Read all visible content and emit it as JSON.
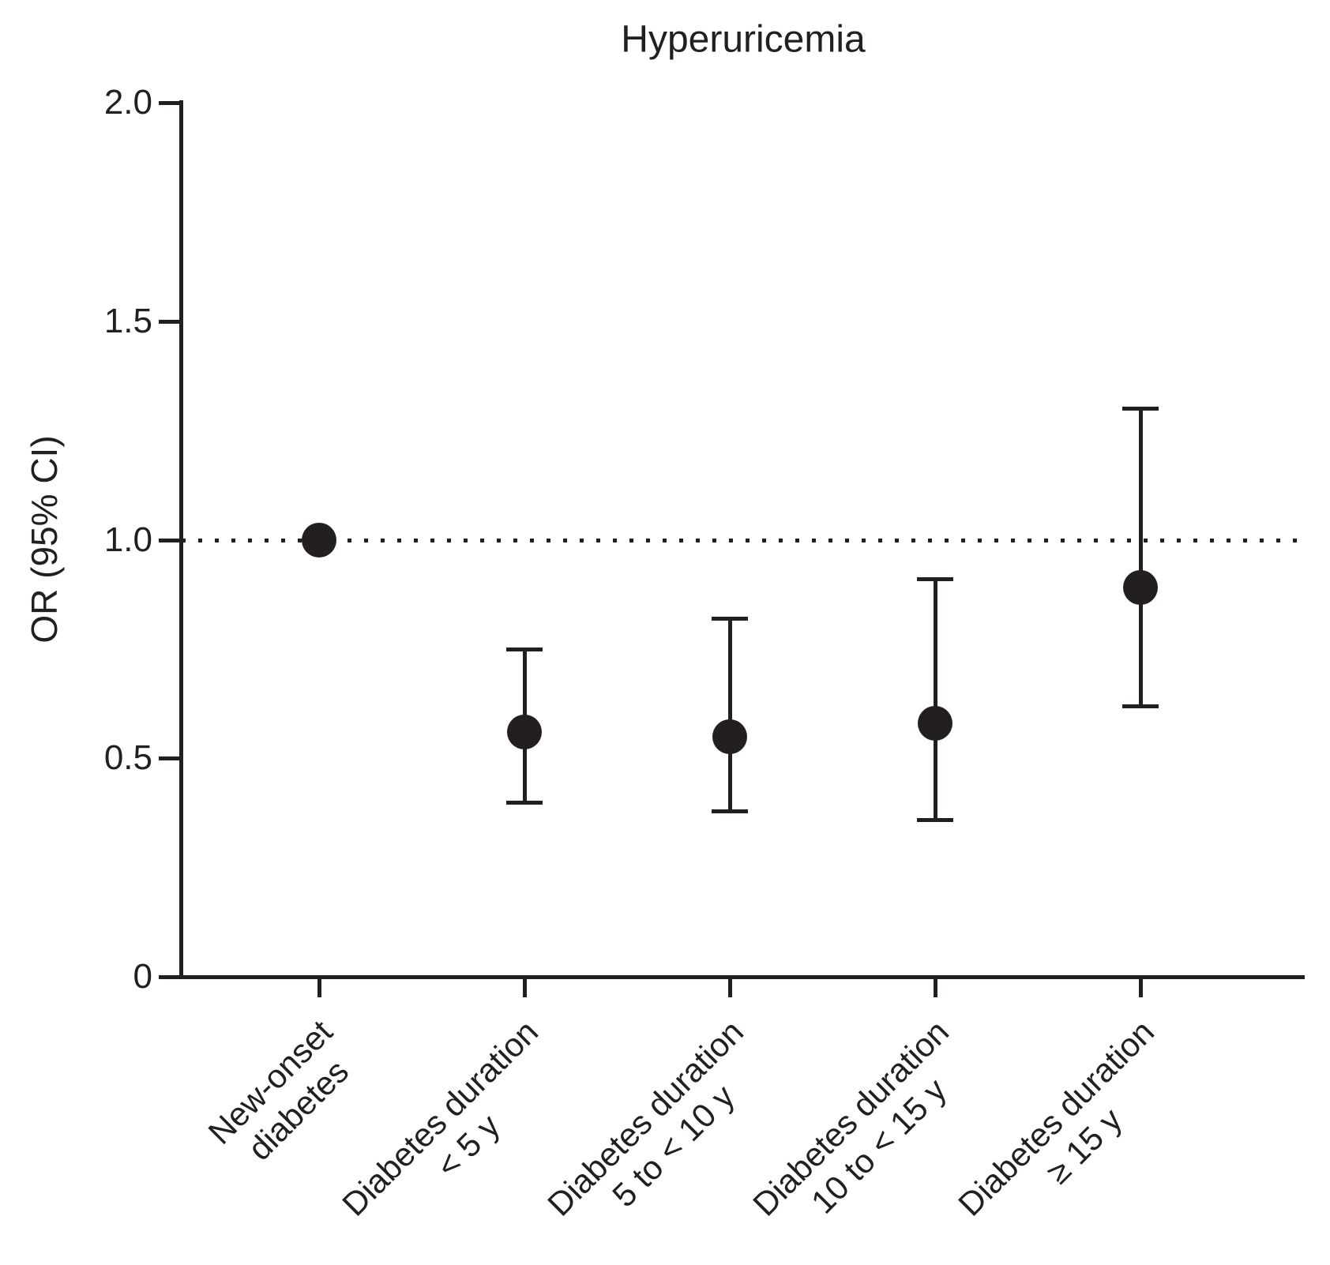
{
  "chart_data": {
    "type": "scatter",
    "title": "Hyperuricemia",
    "xlabel": "",
    "ylabel": "OR (95% CI)",
    "ylim": [
      0,
      2.0
    ],
    "yticks": [
      0,
      0.5,
      1.0,
      1.5,
      2.0
    ],
    "ytick_labels": [
      "0",
      "0.5",
      "1.0",
      "1.5",
      "2.0"
    ],
    "reference_line_y": 1.0,
    "reference_line_style": "dotted",
    "grid": false,
    "legend": false,
    "marker_style": "filled-circle",
    "categories": [
      {
        "label_lines": [
          "New-onset",
          "diabetes"
        ],
        "label": "New-onset diabetes",
        "or": 1.0,
        "ci_low": null,
        "ci_high": null
      },
      {
        "label_lines": [
          "Diabetes duration",
          "< 5 y"
        ],
        "label": "Diabetes duration < 5 y",
        "or": 0.56,
        "ci_low": 0.4,
        "ci_high": 0.75
      },
      {
        "label_lines": [
          "Diabetes duration",
          "5 to < 10 y"
        ],
        "label": "Diabetes duration 5 to < 10 y",
        "or": 0.55,
        "ci_low": 0.38,
        "ci_high": 0.82
      },
      {
        "label_lines": [
          "Diabetes duration",
          "10 to < 15 y"
        ],
        "label": "Diabetes duration 10 to < 15 y",
        "or": 0.58,
        "ci_low": 0.36,
        "ci_high": 0.91
      },
      {
        "label_lines": [
          "Diabetes duration",
          "≥ 15 y"
        ],
        "label": "Diabetes duration ≥ 15 y",
        "or": 0.89,
        "ci_low": 0.62,
        "ci_high": 1.3
      }
    ],
    "colors": {
      "marker": "#231f20",
      "axis": "#231f20",
      "text": "#231f20",
      "background": "#ffffff"
    }
  }
}
